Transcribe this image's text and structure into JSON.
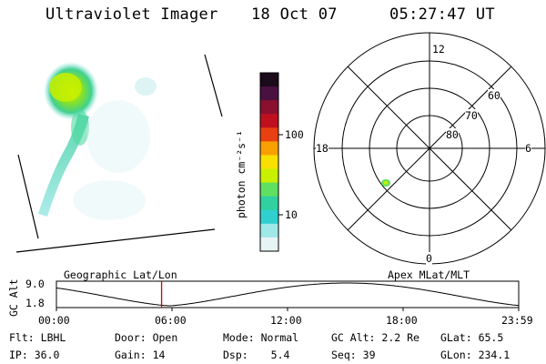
{
  "header": {
    "instrument": "Ultraviolet Imager",
    "date": "18 Oct 07",
    "time": "05:27:47 UT"
  },
  "colorbar": {
    "label": "photon cm⁻²s⁻¹",
    "tick_labels": [
      "100",
      "10"
    ],
    "colors": [
      "#1a0a1a",
      "#4a1040",
      "#8a1030",
      "#c01020",
      "#e84010",
      "#f8a000",
      "#f8e000",
      "#c8f000",
      "#60e060",
      "#30d0a0",
      "#30d0d0",
      "#a0e8e8",
      "#e8f4f4"
    ]
  },
  "polar": {
    "mlt_labels": {
      "top": "12",
      "left": "18",
      "right": "6",
      "bottom": "0"
    },
    "lat_labels": [
      "60",
      "70",
      "80"
    ]
  },
  "orbit": {
    "y_label": "GC Alt",
    "y_ticks": [
      "9.0",
      "1.8"
    ],
    "left_caption": "Geographic Lat/Lon",
    "right_caption": "Apex MLat/MLT",
    "x_ticks": [
      "00:00",
      "06:00",
      "12:00",
      "18:00",
      "23:59"
    ],
    "current_time_hours": 5.46,
    "marker_color": "#cc0000"
  },
  "info": {
    "flt_label": "Flt:",
    "flt_value": "LBHL",
    "ip_label": "IP:",
    "ip_value": "36.0",
    "door_label": "Door:",
    "door_value": "Open",
    "gain_label": "Gain:",
    "gain_value": "14",
    "mode_label": "Mode:",
    "mode_value": "Normal",
    "dsp_label": "Dsp:",
    "dsp_value": "5.4",
    "gcalt_label": "GC Alt:",
    "gcalt_value": "2.2 Re",
    "seq_label": "Seq:",
    "seq_value": "39",
    "glat_label": "GLat:",
    "glat_value": "65.5",
    "glon_label": "GLon:",
    "glon_value": "234.1"
  }
}
